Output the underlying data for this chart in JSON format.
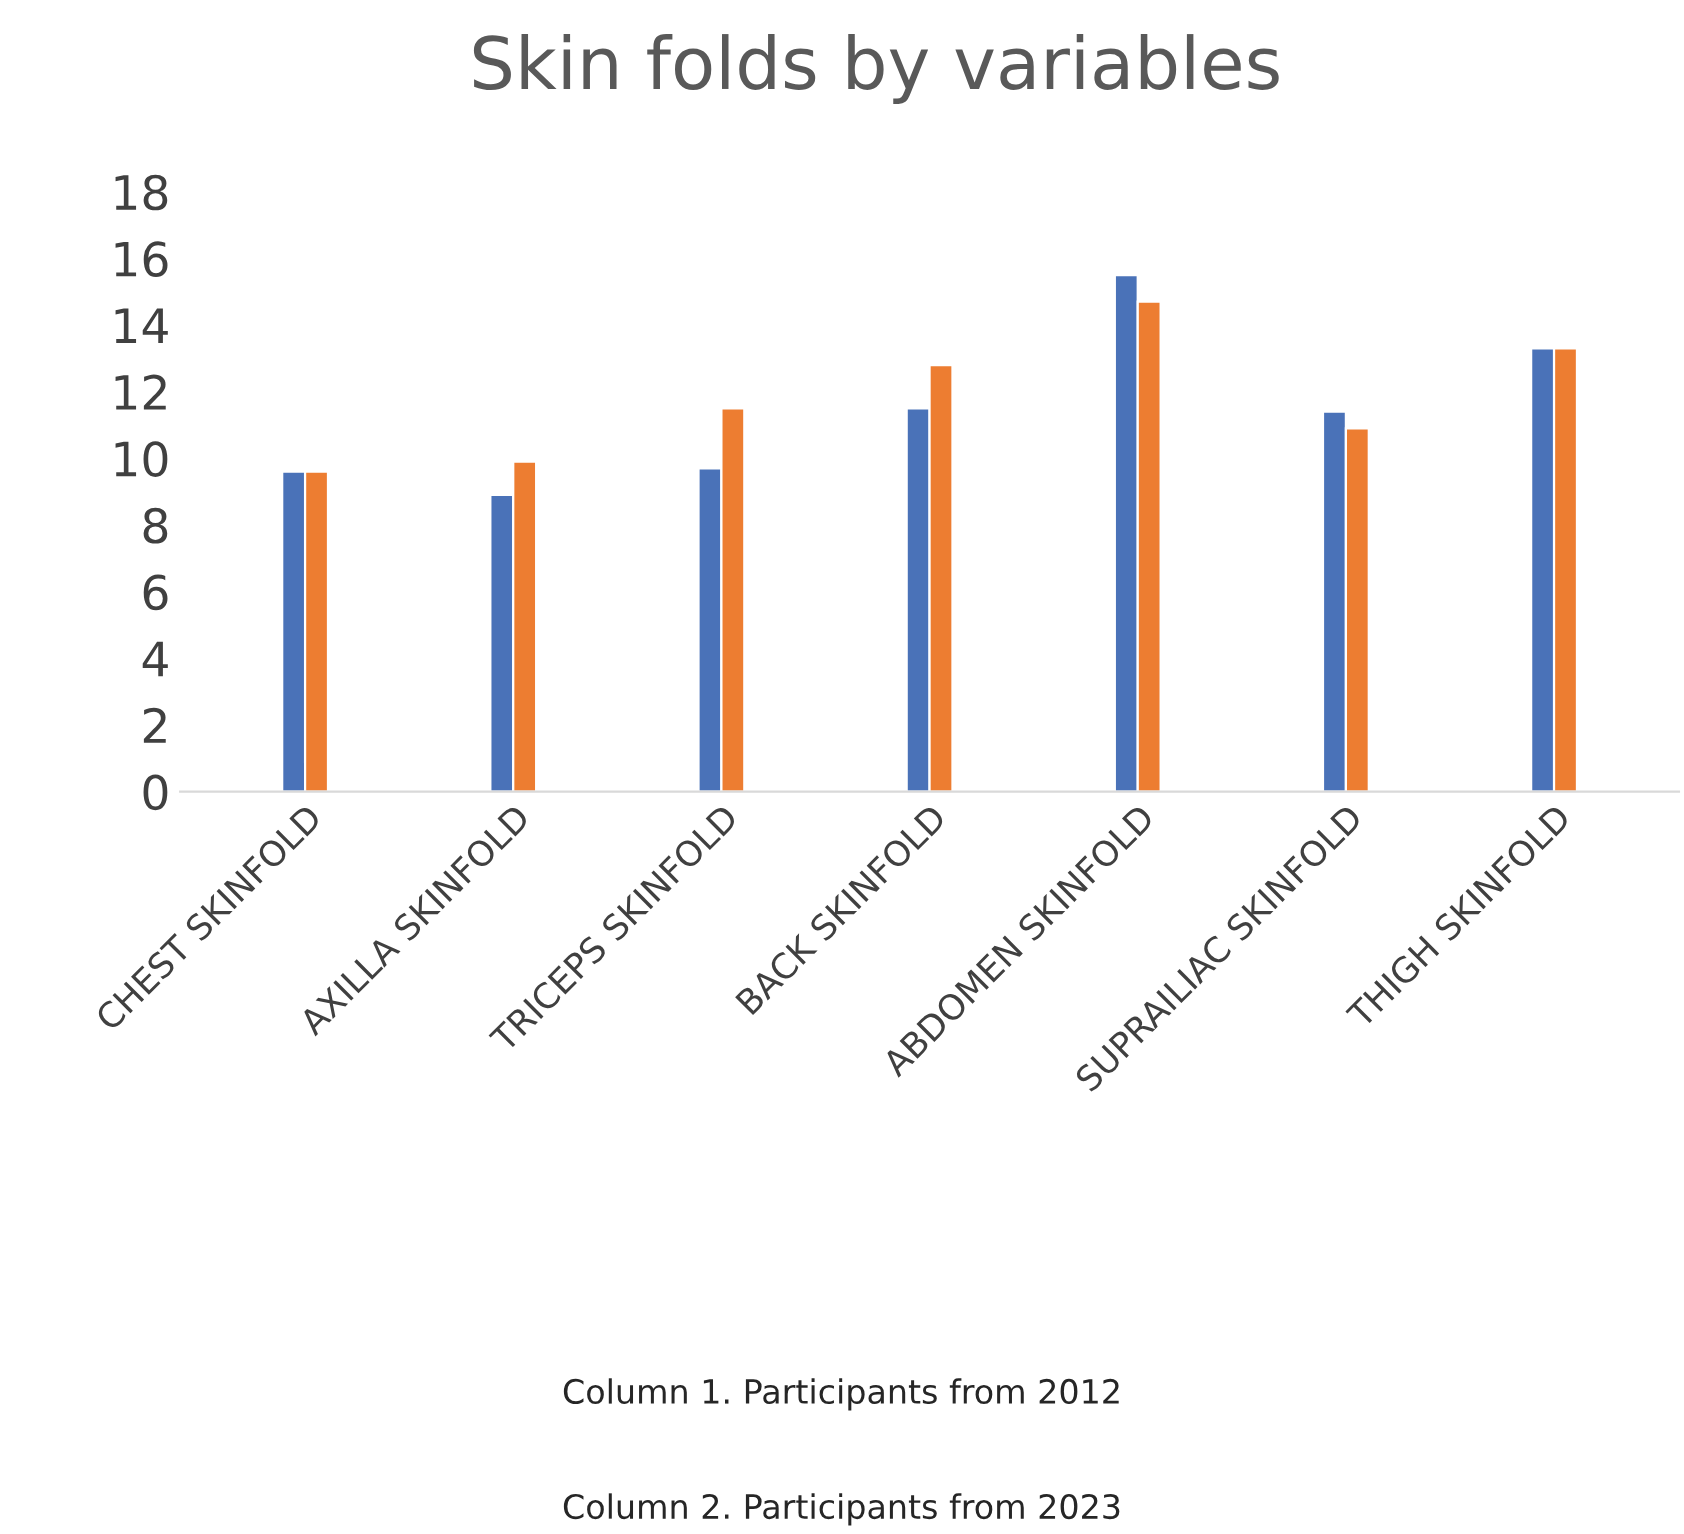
{
  "chart_data": {
    "type": "bar",
    "title": "Skin folds by variables",
    "categories": [
      "CHEST SKINFOLD",
      "AXILLA SKINFOLD",
      "TRICEPS SKINFOLD",
      "BACK SKINFOLD",
      "ABDOMEN SKINFOLD",
      "SUPRAILIAC SKINFOLD",
      "THIGH SKINFOLD"
    ],
    "series": [
      {
        "color": "#4a72b8",
        "values": [
          9.6,
          8.9,
          9.7,
          11.5,
          15.5,
          11.4,
          13.3
        ]
      },
      {
        "color": "#ed7d31",
        "values": [
          9.6,
          9.9,
          11.5,
          12.8,
          14.7,
          10.9,
          13.3
        ]
      }
    ],
    "ylim": [
      0,
      18
    ],
    "yticks": [
      0,
      2,
      4,
      6,
      8,
      10,
      12,
      14,
      16,
      18
    ],
    "grid": false,
    "legend": false,
    "annotations": [
      "Column 1. Participants from 2012",
      "Column 2. Participants from 2023"
    ]
  }
}
